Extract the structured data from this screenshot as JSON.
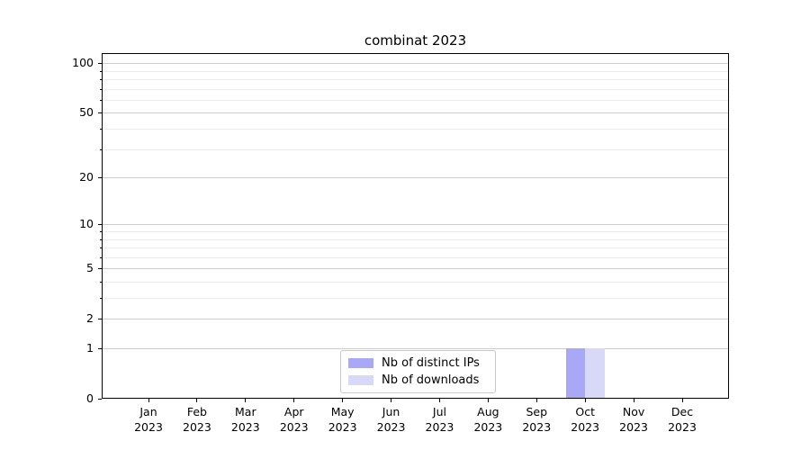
{
  "chart_data": {
    "type": "bar",
    "title": "combinat 2023",
    "x_categories": [
      "Jan",
      "Feb",
      "Mar",
      "Apr",
      "May",
      "Jun",
      "Jul",
      "Aug",
      "Sep",
      "Oct",
      "Nov",
      "Dec"
    ],
    "x_year_label": "2023",
    "series": [
      {
        "name": "Nb of distinct IPs",
        "color": "#a8a8f6",
        "values": [
          0,
          0,
          0,
          0,
          0,
          0,
          0,
          0,
          0,
          1,
          0,
          0
        ]
      },
      {
        "name": "Nb of downloads",
        "color": "#d8d8f8",
        "values": [
          0,
          0,
          0,
          0,
          0,
          0,
          0,
          0,
          0,
          1,
          0,
          0
        ]
      }
    ],
    "y_axis": {
      "scale": "log1p",
      "major_ticks": [
        0,
        1,
        2,
        5,
        10,
        20,
        50,
        100
      ],
      "minor_ticks": [
        3,
        4,
        6,
        7,
        8,
        9,
        30,
        40,
        60,
        70,
        80,
        90
      ],
      "top_value": 115,
      "bottom_value": 0
    },
    "legend": {
      "position": "lower center",
      "entries": [
        "Nb of distinct IPs",
        "Nb of downloads"
      ]
    },
    "grid": "horizontal"
  },
  "colors": {
    "bar_distinct_ips": "#a8a8f6",
    "bar_downloads": "#d8d8f8",
    "grid_major": "#cccccc",
    "grid_minor": "#ebebeb",
    "axis_frame": "#000000",
    "legend_border": "#c9c9c9",
    "text": "#000000",
    "background": "#ffffff"
  }
}
